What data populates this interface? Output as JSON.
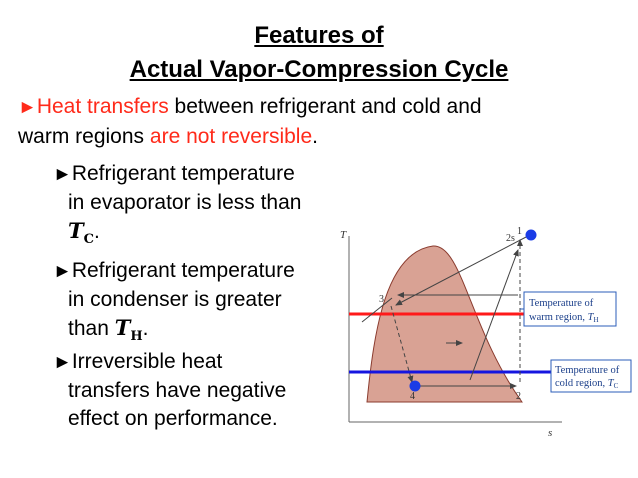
{
  "title": {
    "line1": "Features of",
    "line2": "Actual Vapor-Compression Cycle"
  },
  "bullet_marker": "►",
  "main_bullet": {
    "red1": "Heat transfers",
    "text1": " between refrigerant and cold and",
    "text2": "warm regions ",
    "red2": "are not reversible",
    "period": "."
  },
  "sub_bullets": [
    {
      "line1": "Refrigerant temperature",
      "line2": "in evaporator is less than",
      "symbol": "T",
      "subscript": "C",
      "tail": "."
    },
    {
      "line1": "Refrigerant temperature",
      "line2": "in condenser is greater",
      "line3_prefix": "than ",
      "symbol": "T",
      "subscript": "H",
      "tail": "."
    },
    {
      "line1": "Irreversible heat",
      "line2": "transfers have negative",
      "line3": "effect on performance."
    }
  ],
  "diagram": {
    "axis_t": "T",
    "axis_s": "s",
    "states": [
      "1",
      "2",
      "2s",
      "3",
      "4"
    ],
    "warm_box_line1": "Temperature of",
    "warm_box_line2": "warm region, ",
    "warm_sym": "T",
    "warm_sub": "H",
    "cold_box_line1": "Temperature of",
    "cold_box_line2": "cold region, ",
    "cold_sym": "T",
    "cold_sub": "C",
    "colors": {
      "dome_fill": "#d9a294",
      "dome_stroke": "#8a3b2e",
      "warm_line": "#ff1a1a",
      "cold_line": "#1515e0",
      "dot": "#1a3ce6",
      "box_stroke": "#2b5cb8"
    }
  }
}
